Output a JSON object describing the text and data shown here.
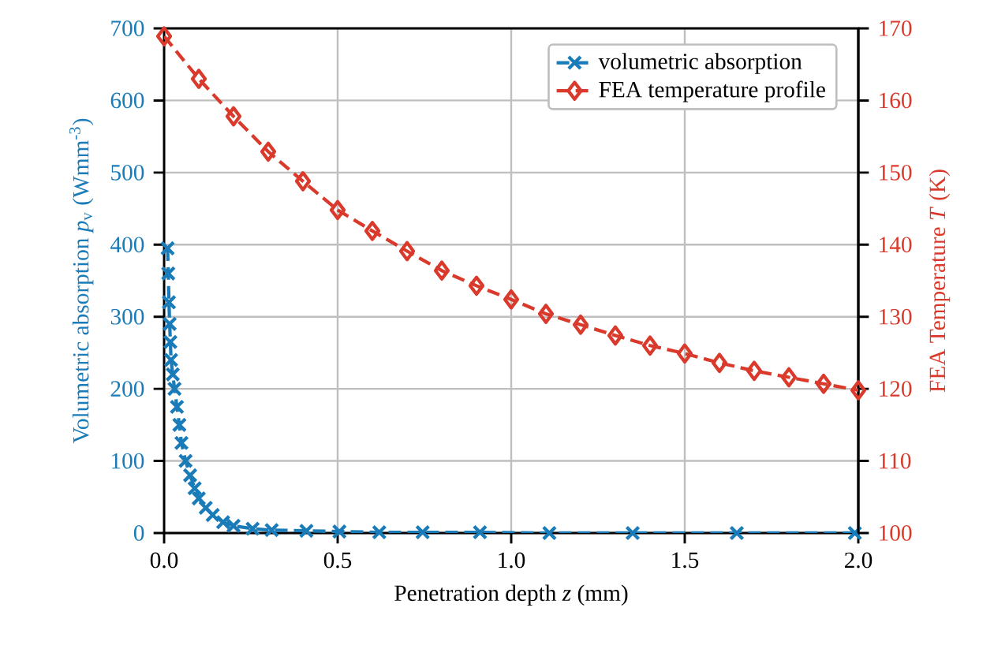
{
  "chart_data": {
    "type": "line",
    "xlabel": "Penetration depth *z* (mm)",
    "ylabel": "Volumetric absorption *p*$_{v}$ (Wmm$^{-3}$)",
    "y2label": "FEA Temperature *T* (K)",
    "xlim": [
      0,
      2.0
    ],
    "ylim": [
      0,
      700
    ],
    "y2lim": [
      100,
      170
    ],
    "xticks": [
      {
        "value": 0,
        "label": "0.0"
      },
      {
        "value": 0.5,
        "label": "0.5"
      },
      {
        "value": 1.0,
        "label": "1.0"
      },
      {
        "value": 1.5,
        "label": "1.5"
      },
      {
        "value": 2.0,
        "label": "2.0"
      }
    ],
    "yticks": [
      0,
      100,
      200,
      300,
      400,
      500,
      600,
      700
    ],
    "y2ticks": [
      100,
      110,
      120,
      130,
      140,
      150,
      160,
      170
    ],
    "grid": true,
    "legend": "top right",
    "series": [
      {
        "name": "volumetric absorption",
        "color": "#1a7bb9",
        "marker": "cross",
        "line_style": "dashed",
        "x": [
          0.01,
          0.012,
          0.014,
          0.016,
          0.018,
          0.02,
          0.025,
          0.03,
          0.037,
          0.044,
          0.05,
          0.062,
          0.075,
          0.088,
          0.1,
          0.12,
          0.14,
          0.17,
          0.2,
          0.255,
          0.31,
          0.41,
          0.505,
          0.62,
          0.745,
          0.91,
          1.11,
          1.35,
          1.65,
          1.99
        ],
        "values": [
          395,
          360,
          320,
          290,
          265,
          240,
          220,
          200,
          175,
          150,
          125,
          100,
          80,
          62,
          48,
          35,
          25,
          15,
          10,
          6,
          4,
          3,
          2,
          1,
          1,
          1,
          0,
          0,
          0,
          0
        ]
      },
      {
        "name": "FEA temperature profile",
        "color": "#d93a2b",
        "marker": "diamond",
        "line_style": "dashed",
        "axis": "y2",
        "x": [
          0,
          0.1,
          0.2,
          0.3,
          0.4,
          0.5,
          0.6,
          0.7,
          0.8,
          0.9,
          1.0,
          1.1,
          1.2,
          1.3,
          1.4,
          1.5,
          1.6,
          1.7,
          1.8,
          1.9,
          2.0
        ],
        "values": [
          168.9,
          163.0,
          157.8,
          152.9,
          148.8,
          144.8,
          141.9,
          139.1,
          136.4,
          134.3,
          132.4,
          130.4,
          128.9,
          127.4,
          126.0,
          124.9,
          123.6,
          122.5,
          121.6,
          120.7,
          119.8
        ]
      }
    ]
  }
}
